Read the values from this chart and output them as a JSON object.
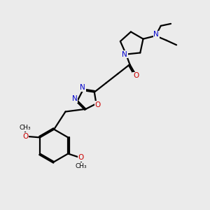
{
  "background_color": "#ebebeb",
  "bond_color": "#000000",
  "N_color": "#0000cc",
  "O_color": "#cc0000",
  "line_width": 1.6,
  "figsize": [
    3.0,
    3.0
  ],
  "dpi": 100,
  "xlim": [
    0,
    10
  ],
  "ylim": [
    0,
    10
  ]
}
